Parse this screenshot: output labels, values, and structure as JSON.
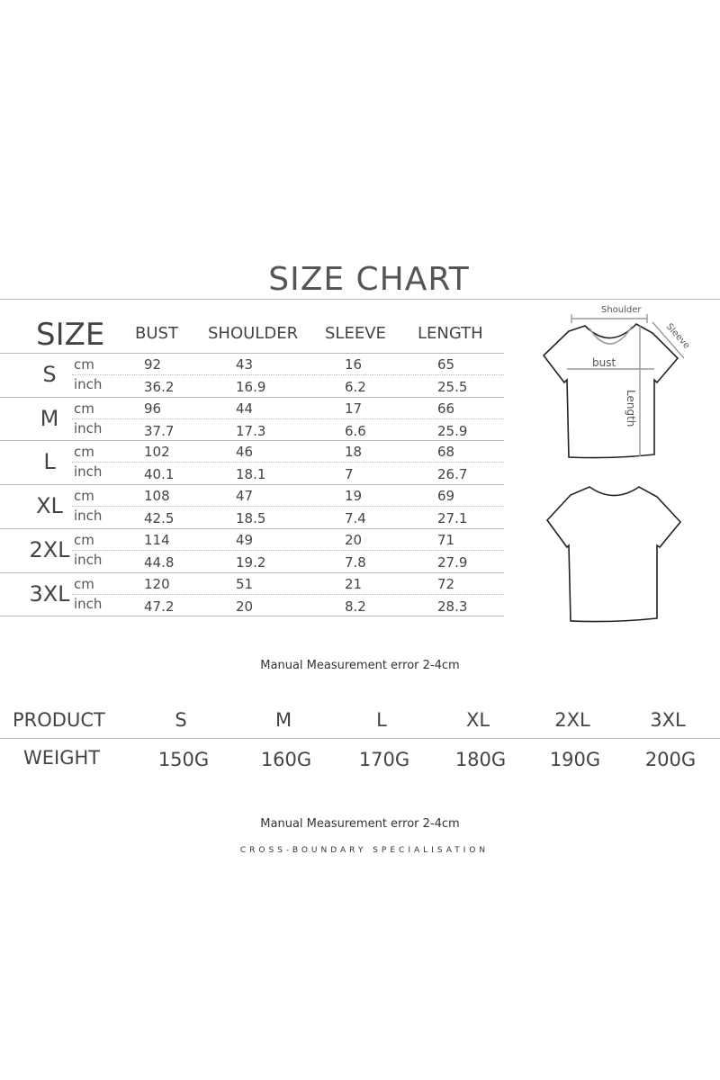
{
  "title": "SIZE CHART",
  "size_table": {
    "size_header": "SIZE",
    "columns": [
      "BUST",
      "SHOULDER",
      "SLEEVE",
      "LENGTH"
    ],
    "units": [
      "cm",
      "inch"
    ],
    "rows": [
      {
        "size": "S",
        "cm": [
          "92",
          "43",
          "16",
          "65"
        ],
        "inch": [
          "36.2",
          "16.9",
          "6.2",
          "25.5"
        ]
      },
      {
        "size": "M",
        "cm": [
          "96",
          "44",
          "17",
          "66"
        ],
        "inch": [
          "37.7",
          "17.3",
          "6.6",
          "25.9"
        ]
      },
      {
        "size": "L",
        "cm": [
          "102",
          "46",
          "18",
          "68"
        ],
        "inch": [
          "40.1",
          "18.1",
          "7",
          "26.7"
        ]
      },
      {
        "size": "XL",
        "cm": [
          "108",
          "47",
          "19",
          "69"
        ],
        "inch": [
          "42.5",
          "18.5",
          "7.4",
          "27.1"
        ]
      },
      {
        "size": "2XL",
        "cm": [
          "114",
          "49",
          "20",
          "71"
        ],
        "inch": [
          "44.8",
          "19.2",
          "7.8",
          "27.9"
        ]
      },
      {
        "size": "3XL",
        "cm": [
          "120",
          "51",
          "21",
          "72"
        ],
        "inch": [
          "47.2",
          "20",
          "8.2",
          "28.3"
        ]
      }
    ]
  },
  "diagram_labels": {
    "shoulder": "Shoulder",
    "sleeve": "Sleeve",
    "bust": "bust",
    "length": "Length"
  },
  "note1": "Manual Measurement error 2-4cm",
  "weight_table": {
    "product_label": "PRODUCT",
    "weight_label": "WEIGHT",
    "sizes": [
      "S",
      "M",
      "L",
      "XL",
      "2XL",
      "3XL"
    ],
    "weights": [
      "150G",
      "160G",
      "170G",
      "180G",
      "190G",
      "200G"
    ]
  },
  "note2": "Manual Measurement error 2-4cm",
  "footer": "CROSS-BOUNDARY SPECIALISATION"
}
